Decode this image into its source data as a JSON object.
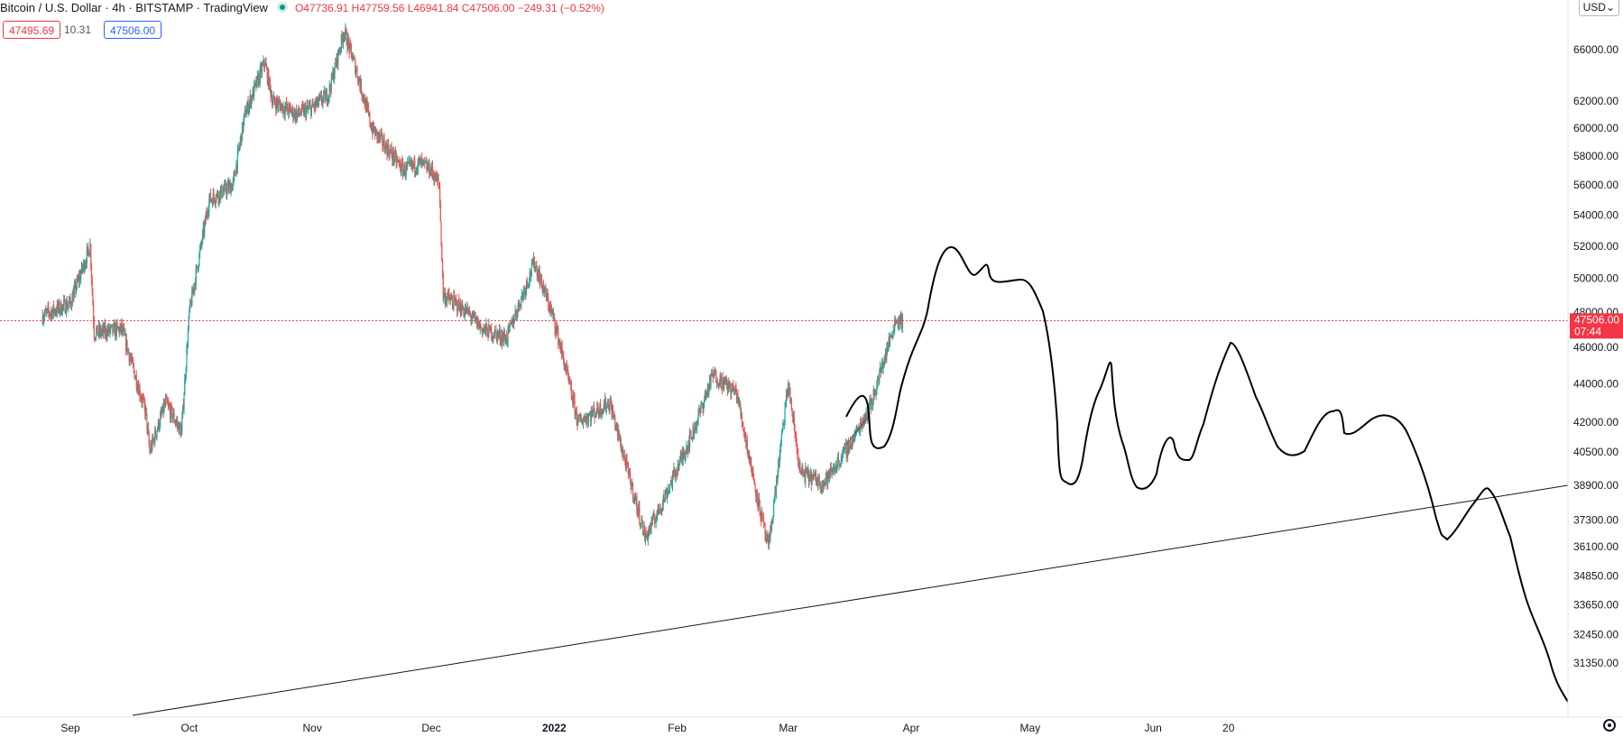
{
  "header": {
    "symbol": "Bitcoin / U.S. Dollar · 4h · BITSTAMP · TradingView",
    "ohlc": "O47736.91 H47759.56 L46941.84 C47506.00 −249.31 (−0.52%)",
    "bid": "47495.69",
    "spread": "10.31",
    "ask": "47506.00",
    "currency": "USD"
  },
  "price_label": {
    "value": "47506.00",
    "countdown": "07:44"
  },
  "colors": {
    "up": "#26a69a",
    "down": "#ef5350",
    "last_price": "#f23645",
    "ask": "#2962ff",
    "drawing": "#131722"
  },
  "icons": {
    "settings": "gear-icon",
    "currency_dropdown": "chevron-down-icon"
  },
  "chart_data": {
    "type": "line",
    "scale": "log",
    "y_ticks": [
      66000,
      62000,
      60000,
      58000,
      56000,
      54000,
      52000,
      50000,
      48000,
      46000,
      44000,
      42000,
      40500,
      38900,
      37300,
      36100,
      34850,
      33650,
      32450,
      31350
    ],
    "y_tick_labels": [
      "66000.00",
      "62000.00",
      "60000.00",
      "58000.00",
      "56000.00",
      "54000.00",
      "52000.00",
      "50000.00",
      "48000.00",
      "46000.00",
      "44000.00",
      "42000.00",
      "40500.00",
      "38900.00",
      "37300.00",
      "36100.00",
      "34850.00",
      "33650.00",
      "32450.00",
      "31350.00"
    ],
    "x_tick_labels": [
      "Sep",
      "Oct",
      "Nov",
      "Dec",
      "2022",
      "Feb",
      "Mar",
      "Apr",
      "May",
      "Jun",
      "20"
    ],
    "x_tick_dates": [
      "2021-09-01",
      "2021-10-01",
      "2021-11-01",
      "2021-12-01",
      "2022-01-01",
      "2022-02-01",
      "2022-03-01",
      "2022-04-01",
      "2022-05-01",
      "2022-06-01",
      "2022-06-20"
    ],
    "last_price": 47506.0,
    "series": [
      {
        "points": [
          [
            "2021-08-25",
            47800
          ],
          [
            "2021-09-01",
            48500
          ],
          [
            "2021-09-06",
            52000
          ],
          [
            "2021-09-07",
            46800
          ],
          [
            "2021-09-14",
            47000
          ],
          [
            "2021-09-20",
            42500
          ],
          [
            "2021-09-21",
            40500
          ],
          [
            "2021-09-25",
            43000
          ],
          [
            "2021-09-29",
            41500
          ],
          [
            "2021-10-01",
            48000
          ],
          [
            "2021-10-06",
            55000
          ],
          [
            "2021-10-12",
            56000
          ],
          [
            "2021-10-15",
            61000
          ],
          [
            "2021-10-20",
            65000
          ],
          [
            "2021-10-22",
            62000
          ],
          [
            "2021-10-28",
            61000
          ],
          [
            "2021-11-01",
            61500
          ],
          [
            "2021-11-05",
            62500
          ],
          [
            "2021-11-09",
            67500
          ],
          [
            "2021-11-12",
            64500
          ],
          [
            "2021-11-16",
            60000
          ],
          [
            "2021-11-20",
            58500
          ],
          [
            "2021-11-24",
            57000
          ],
          [
            "2021-11-28",
            57500
          ],
          [
            "2021-12-01",
            57000
          ],
          [
            "2021-12-03",
            56000
          ],
          [
            "2021-12-04",
            49000
          ],
          [
            "2021-12-10",
            48000
          ],
          [
            "2021-12-14",
            47000
          ],
          [
            "2021-12-20",
            46500
          ],
          [
            "2021-12-27",
            51000
          ],
          [
            "2022-01-01",
            47500
          ],
          [
            "2022-01-07",
            42000
          ],
          [
            "2022-01-15",
            43000
          ],
          [
            "2022-01-21",
            38500
          ],
          [
            "2022-01-24",
            36500
          ],
          [
            "2022-01-28",
            38000
          ],
          [
            "2022-02-05",
            41500
          ],
          [
            "2022-02-10",
            44500
          ],
          [
            "2022-02-16",
            43500
          ],
          [
            "2022-02-21",
            38500
          ],
          [
            "2022-02-24",
            36000
          ],
          [
            "2022-03-01",
            44000
          ],
          [
            "2022-03-04",
            39500
          ],
          [
            "2022-03-10",
            39000
          ],
          [
            "2022-03-17",
            41000
          ],
          [
            "2022-03-22",
            43000
          ],
          [
            "2022-03-28",
            47500
          ],
          [
            "2022-03-30",
            47506
          ]
        ]
      }
    ]
  }
}
